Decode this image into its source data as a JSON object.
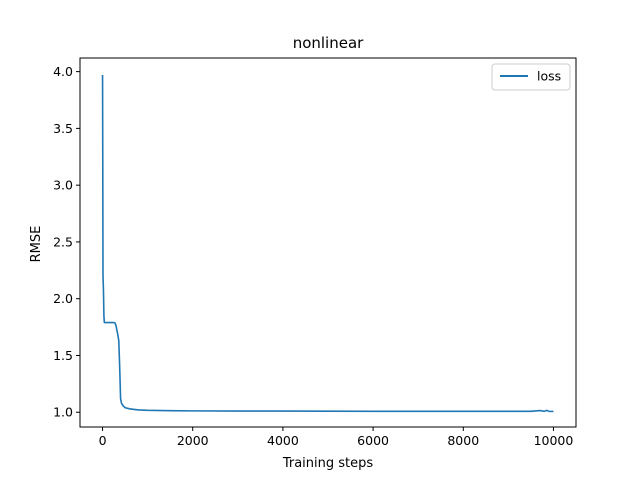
{
  "chart_data": {
    "type": "line",
    "title": "nonlinear",
    "xlabel": "Training steps",
    "ylabel": "RMSE",
    "xlim": [
      -500,
      10500
    ],
    "ylim": [
      0.87,
      4.12
    ],
    "xticks": [
      0,
      2000,
      4000,
      6000,
      8000,
      10000
    ],
    "yticks": [
      1.0,
      1.5,
      2.0,
      2.5,
      3.0,
      3.5,
      4.0
    ],
    "xtick_labels": [
      "0",
      "2000",
      "4000",
      "6000",
      "8000",
      "10000"
    ],
    "ytick_labels": [
      "1.0",
      "1.5",
      "2.0",
      "2.5",
      "3.0",
      "3.5",
      "4.0"
    ],
    "grid": false,
    "legend_position": "top-right",
    "series": [
      {
        "name": "loss",
        "color": "#1f77b4",
        "x": [
          0,
          5,
          10,
          20,
          30,
          40,
          50,
          60,
          80,
          100,
          150,
          200,
          250,
          280,
          300,
          320,
          340,
          360,
          380,
          400,
          420,
          450,
          500,
          600,
          700,
          800,
          1000,
          1500,
          2000,
          3000,
          4000,
          5000,
          6000,
          7000,
          8000,
          9000,
          9500,
          9700,
          9800,
          9850,
          9900,
          10000
        ],
        "y": [
          3.97,
          3.2,
          2.2,
          2.08,
          1.85,
          1.79,
          1.79,
          1.79,
          1.79,
          1.79,
          1.79,
          1.79,
          1.79,
          1.785,
          1.76,
          1.72,
          1.68,
          1.63,
          1.4,
          1.12,
          1.08,
          1.06,
          1.04,
          1.03,
          1.025,
          1.02,
          1.017,
          1.014,
          1.012,
          1.01,
          1.01,
          1.009,
          1.008,
          1.008,
          1.008,
          1.008,
          1.008,
          1.015,
          1.008,
          1.017,
          1.008,
          1.007
        ]
      }
    ]
  }
}
